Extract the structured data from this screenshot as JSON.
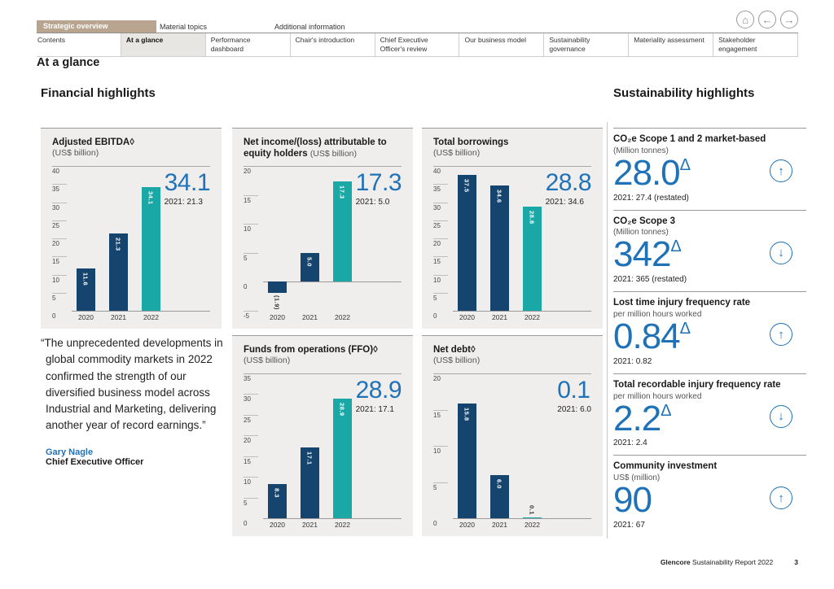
{
  "colors": {
    "navy": "#15456e",
    "teal": "#19a8a5",
    "accent": "#00a39b",
    "blue": "#1f72b8"
  },
  "nav": {
    "primary": [
      {
        "label": "Strategic overview",
        "active": true
      },
      {
        "label": "Material topics",
        "active": false
      },
      {
        "label": "Additional information",
        "active": false
      }
    ],
    "secondary": [
      {
        "label": "Contents",
        "active": false
      },
      {
        "label": "At a glance",
        "active": true
      },
      {
        "label": "Performance dashboard",
        "active": false
      },
      {
        "label": "Chair's introduction",
        "active": false
      },
      {
        "label": "Chief Executive Officer's review",
        "active": false
      },
      {
        "label": "Our business model",
        "active": false
      },
      {
        "label": "Sustainability governance",
        "active": false
      },
      {
        "label": "Materiality assessment",
        "active": false
      },
      {
        "label": "Stakeholder engagement",
        "active": false
      }
    ]
  },
  "page": {
    "title": "At a glance",
    "footer_brand": "Glencore",
    "footer_text": " Sustainability Report 2022",
    "footer_page": "3"
  },
  "sections": {
    "financial": "Financial highlights",
    "sustainability": "Sustainability highlights"
  },
  "quote": {
    "text": "“The unprecedented developments in global commodity markets in 2022 confirmed the strength of our diversified business model across Industrial and Marketing, delivering another year of record earnings.”",
    "author": "Gary Nagle",
    "role": "Chief Executive Officer"
  },
  "chart_data": [
    {
      "type": "bar",
      "title": "Adjusted EBITDA◊",
      "unit": "(US$ billion)",
      "unit_inline": false,
      "categories": [
        "2020",
        "2021",
        "2022"
      ],
      "values": [
        11.6,
        21.3,
        34.1
      ],
      "bar_labels": [
        "11.6",
        "21.3",
        "34.1"
      ],
      "ymin": 0,
      "ymax": 40,
      "ystep": 5,
      "highlight_value": "34.1",
      "prior_label": "2021: 21.3",
      "legend": "none",
      "grid": "ticks-left"
    },
    {
      "type": "bar",
      "title": "Net income/(loss) attributable to equity holders",
      "unit": "(US$ billion)",
      "unit_inline": true,
      "categories": [
        "2020",
        "2021",
        "2022"
      ],
      "values": [
        -1.9,
        5.0,
        17.3
      ],
      "bar_labels": [
        "(1.9)",
        "5.0",
        "17.3"
      ],
      "ymin": -5,
      "ymax": 20,
      "ystep": 5,
      "highlight_value": "17.3",
      "prior_label": "2021: 5.0",
      "legend": "none",
      "grid": "ticks-left"
    },
    {
      "type": "bar",
      "title": "Total borrowings",
      "unit": "(US$ billion)",
      "unit_inline": false,
      "categories": [
        "2020",
        "2021",
        "2022"
      ],
      "values": [
        37.5,
        34.6,
        28.8
      ],
      "bar_labels": [
        "37.5",
        "34.6",
        "28.8"
      ],
      "ymin": 0,
      "ymax": 40,
      "ystep": 5,
      "highlight_value": "28.8",
      "prior_label": "2021: 34.6",
      "legend": "none",
      "grid": "ticks-left"
    },
    {
      "type": "bar",
      "title": "Funds from operations (FFO)◊",
      "unit": "(US$ billion)",
      "unit_inline": false,
      "categories": [
        "2020",
        "2021",
        "2022"
      ],
      "values": [
        8.3,
        17.1,
        28.9
      ],
      "bar_labels": [
        "8.3",
        "17.1",
        "28.9"
      ],
      "ymin": 0,
      "ymax": 35,
      "ystep": 5,
      "highlight_value": "28.9",
      "prior_label": "2021: 17.1",
      "legend": "none",
      "grid": "ticks-left"
    },
    {
      "type": "bar",
      "title": "Net debt◊",
      "unit": "(US$ billion)",
      "unit_inline": false,
      "categories": [
        "2020",
        "2021",
        "2022"
      ],
      "values": [
        15.8,
        6.0,
        0.1
      ],
      "bar_labels": [
        "15.8",
        "6.0",
        "0.1"
      ],
      "ymin": 0,
      "ymax": 20,
      "ystep": 5,
      "highlight_value": "0.1",
      "prior_label": "2021: 6.0",
      "legend": "none",
      "grid": "ticks-left"
    }
  ],
  "sustainability": {
    "items": [
      {
        "title": "CO₂e Scope 1 and 2 market-based",
        "subtitle": "(Million tonnes)",
        "value": "28.0",
        "delta": "Δ",
        "prior": "2021: 27.4 (restated)",
        "trend": "up",
        "arrow": "↑"
      },
      {
        "title": "CO₂e Scope 3",
        "subtitle": "(Million tonnes)",
        "value": "342",
        "delta": "Δ",
        "prior": "2021: 365 (restated)",
        "trend": "down",
        "arrow": "↓"
      },
      {
        "title": "Lost time injury frequency rate",
        "subtitle": "per million hours worked",
        "value": "0.84",
        "delta": "Δ",
        "prior": "2021: 0.82",
        "trend": "up",
        "arrow": "↑"
      },
      {
        "title": "Total recordable injury frequency rate",
        "subtitle": "per million hours worked",
        "value": "2.2",
        "delta": "Δ",
        "prior": "2021: 2.4",
        "trend": "down",
        "arrow": "↓"
      },
      {
        "title": "Community investment",
        "subtitle": "US$ (million)",
        "value": "90",
        "delta": "",
        "prior": "2021: 67",
        "trend": "up",
        "arrow": "↑"
      }
    ]
  },
  "window_icons": {
    "home": "⌂",
    "back": "←",
    "forward": "→"
  }
}
